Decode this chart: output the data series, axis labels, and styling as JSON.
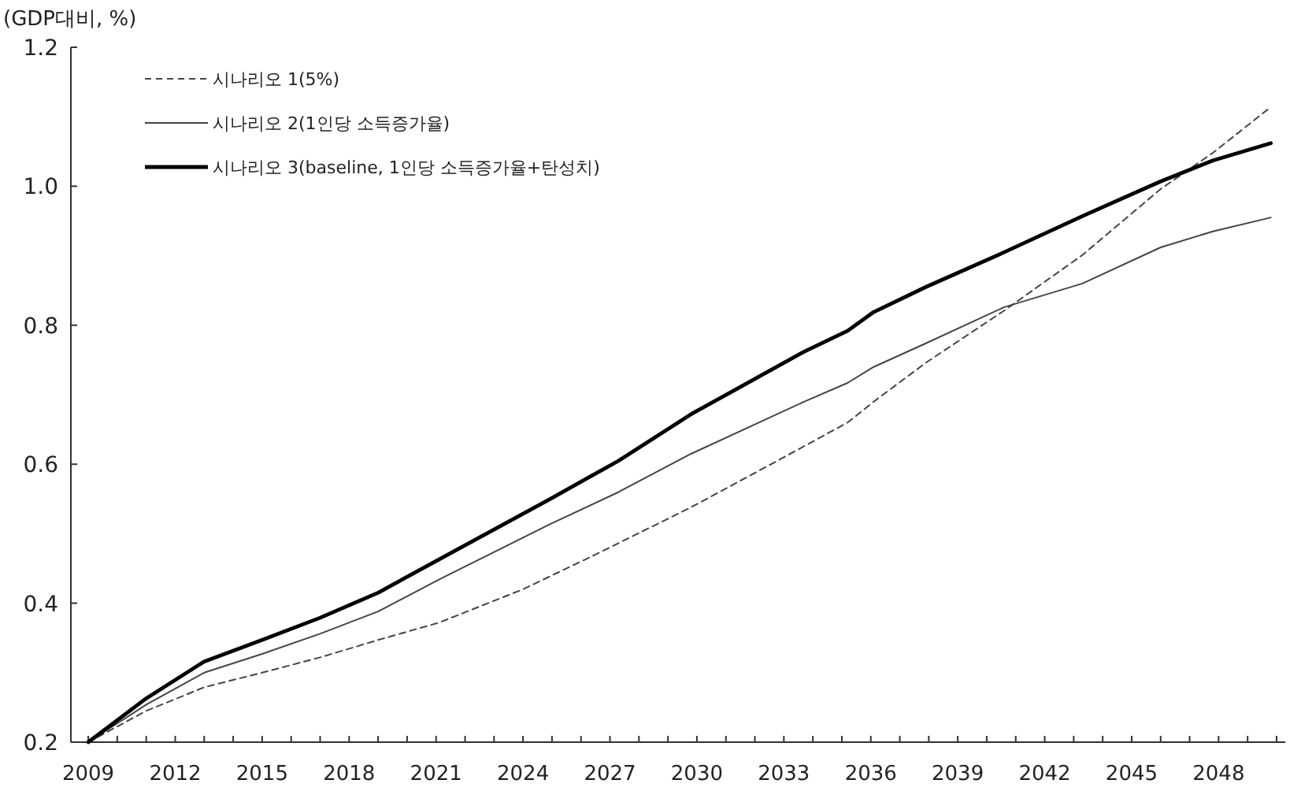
{
  "chart_data": {
    "type": "line",
    "ylabel": "(GDP대비, %)",
    "xlim": [
      2008.4,
      2050.3
    ],
    "ylim": [
      0.2,
      1.2
    ],
    "xticks": [
      2009,
      {
        "value": 2010,
        "label": null
      },
      {
        "value": 2011,
        "label": null
      },
      2012,
      {
        "value": 2013,
        "label": null
      },
      {
        "value": 2014,
        "label": null
      },
      2015,
      {
        "value": 2016,
        "label": null
      },
      {
        "value": 2017,
        "label": null
      },
      2018,
      {
        "value": 2019,
        "label": null
      },
      {
        "value": 2020,
        "label": null
      },
      2021,
      {
        "value": 2022,
        "label": null
      },
      {
        "value": 2023,
        "label": null
      },
      2024,
      {
        "value": 2025,
        "label": null
      },
      {
        "value": 2026,
        "label": null
      },
      2027,
      {
        "value": 2028,
        "label": null
      },
      {
        "value": 2029,
        "label": null
      },
      2030,
      {
        "value": 2031,
        "label": null
      },
      {
        "value": 2032,
        "label": null
      },
      2033,
      {
        "value": 2034,
        "label": null
      },
      {
        "value": 2035,
        "label": null
      },
      2036,
      {
        "value": 2037,
        "label": null
      },
      {
        "value": 2038,
        "label": null
      },
      2039,
      {
        "value": 2040,
        "label": null
      },
      {
        "value": 2041,
        "label": null
      },
      2042,
      {
        "value": 2043,
        "label": null
      },
      {
        "value": 2044,
        "label": null
      },
      2045,
      {
        "value": 2046,
        "label": null
      },
      {
        "value": 2047,
        "label": null
      },
      2048,
      {
        "value": 2049,
        "label": null
      },
      {
        "value": 2050,
        "label": null
      }
    ],
    "yticks": [
      0.2,
      0.4,
      0.6,
      0.8,
      {
        "value": 1,
        "label": "1.0"
      },
      1.2
    ],
    "grid": false,
    "legend": "top left",
    "marker": "none",
    "series": [
      {
        "name": "시나리오 1(5%)",
        "color": "#444444",
        "line_style": "dashed",
        "x": [
          2009,
          2011,
          2013,
          2015,
          2017,
          2019,
          2021.1,
          2024,
          2026.5,
          2029.8,
          2033,
          2035.2,
          2036.1,
          2037.9,
          2040.6,
          2043.3,
          2046,
          2047.8,
          2049.8
        ],
        "values": [
          0.2,
          0.245,
          0.279,
          0.3,
          0.322,
          0.347,
          0.372,
          0.42,
          0.47,
          0.538,
          0.61,
          0.66,
          0.69,
          0.746,
          0.821,
          0.901,
          0.996,
          1.048,
          1.114
        ]
      },
      {
        "name": "시나리오 2(1인당 소득증가율)",
        "color": "#444444",
        "line_style": "solid",
        "x": [
          2009,
          2011,
          2013,
          2015,
          2017,
          2019,
          2021.1,
          2024.9,
          2027.3,
          2029.8,
          2033.7,
          2035.2,
          2036.1,
          2037.9,
          2040.6,
          2043.3,
          2046,
          2047.8,
          2049.8
        ],
        "values": [
          0.2,
          0.254,
          0.3,
          0.327,
          0.356,
          0.388,
          0.434,
          0.513,
          0.56,
          0.615,
          0.69,
          0.717,
          0.74,
          0.774,
          0.826,
          0.86,
          0.912,
          0.935,
          0.955
        ]
      },
      {
        "name": "시나리오 3(baseline, 1인당 소득증가율+탄성치)",
        "color": "#000000",
        "line_style": "solid",
        "x": [
          2009,
          2011,
          2013,
          2015,
          2017,
          2019,
          2021.1,
          2024.9,
          2027.3,
          2029.8,
          2033.7,
          2035.2,
          2036.1,
          2037.9,
          2040.6,
          2043.3,
          2046,
          2047.8,
          2049.8
        ],
        "values": [
          0.2,
          0.263,
          0.316,
          0.347,
          0.379,
          0.415,
          0.463,
          0.549,
          0.605,
          0.672,
          0.762,
          0.792,
          0.819,
          0.855,
          0.905,
          0.957,
          1.007,
          1.037,
          1.062
        ]
      }
    ]
  }
}
